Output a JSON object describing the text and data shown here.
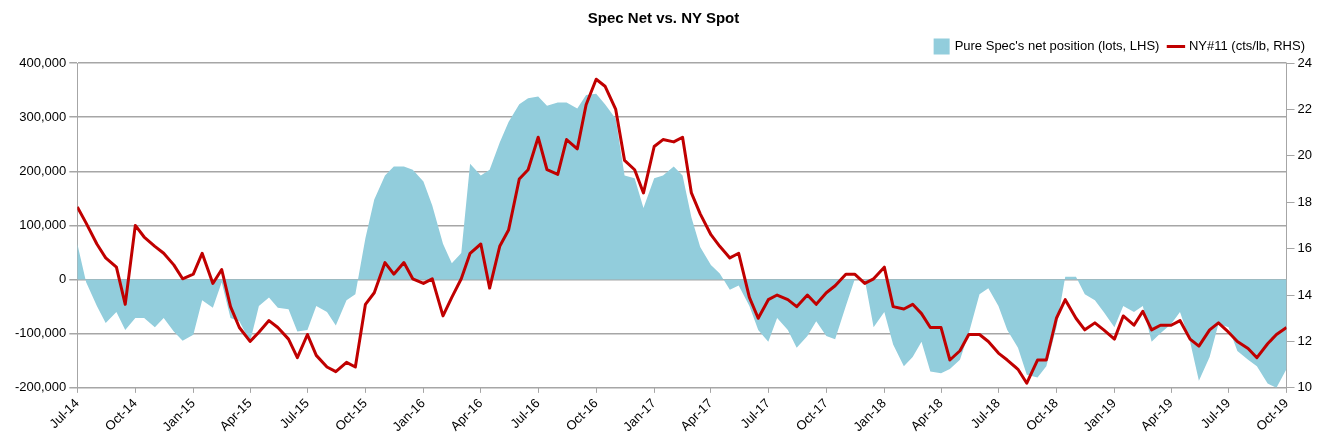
{
  "chart_data": {
    "type": "area",
    "title": "Spec Net vs. NY Spot",
    "x": [
      "2014-07-01",
      "2014-07-15",
      "2014-08-01",
      "2014-08-15",
      "2014-09-01",
      "2014-09-15",
      "2014-10-01",
      "2014-10-15",
      "2014-11-01",
      "2014-11-15",
      "2014-12-01",
      "2014-12-15",
      "2015-01-01",
      "2015-01-15",
      "2015-02-01",
      "2015-02-15",
      "2015-03-01",
      "2015-03-15",
      "2015-04-01",
      "2015-04-15",
      "2015-05-01",
      "2015-05-15",
      "2015-06-01",
      "2015-06-15",
      "2015-07-01",
      "2015-07-15",
      "2015-08-01",
      "2015-08-15",
      "2015-09-01",
      "2015-09-15",
      "2015-10-01",
      "2015-10-15",
      "2015-11-01",
      "2015-11-15",
      "2015-12-01",
      "2015-12-15",
      "2016-01-01",
      "2016-01-15",
      "2016-02-01",
      "2016-02-15",
      "2016-03-01",
      "2016-03-15",
      "2016-04-01",
      "2016-04-15",
      "2016-05-01",
      "2016-05-15",
      "2016-06-01",
      "2016-06-15",
      "2016-07-01",
      "2016-07-15",
      "2016-08-01",
      "2016-08-15",
      "2016-09-01",
      "2016-09-15",
      "2016-10-01",
      "2016-10-15",
      "2016-11-01",
      "2016-11-15",
      "2016-12-01",
      "2016-12-15",
      "2017-01-01",
      "2017-01-15",
      "2017-02-01",
      "2017-02-15",
      "2017-03-01",
      "2017-03-15",
      "2017-04-01",
      "2017-04-15",
      "2017-05-01",
      "2017-05-15",
      "2017-06-01",
      "2017-06-15",
      "2017-07-01",
      "2017-07-15",
      "2017-08-01",
      "2017-08-15",
      "2017-09-01",
      "2017-09-15",
      "2017-10-01",
      "2017-10-15",
      "2017-11-01",
      "2017-11-15",
      "2017-12-01",
      "2017-12-15",
      "2018-01-01",
      "2018-01-15",
      "2018-02-01",
      "2018-02-15",
      "2018-03-01",
      "2018-03-15",
      "2018-04-01",
      "2018-04-15",
      "2018-05-01",
      "2018-05-15",
      "2018-06-01",
      "2018-06-15",
      "2018-07-01",
      "2018-07-15",
      "2018-08-01",
      "2018-08-15",
      "2018-09-01",
      "2018-09-15",
      "2018-10-01",
      "2018-10-15",
      "2018-11-01",
      "2018-11-15",
      "2018-12-01",
      "2018-12-15",
      "2019-01-01",
      "2019-01-15",
      "2019-02-01",
      "2019-02-15",
      "2019-03-01",
      "2019-03-15",
      "2019-04-01",
      "2019-04-15",
      "2019-05-01",
      "2019-05-15",
      "2019-06-01",
      "2019-06-15",
      "2019-07-01",
      "2019-07-15",
      "2019-08-01",
      "2019-08-15",
      "2019-09-01",
      "2019-09-15",
      "2019-10-01"
    ],
    "series": [
      {
        "name": "Pure Spec's net position (lots, LHS)",
        "type": "area",
        "color": "#92cddc",
        "values": [
          66000,
          -5000,
          -49000,
          -80000,
          -60000,
          -93000,
          -71000,
          -71000,
          -88000,
          -71000,
          -96000,
          -113000,
          -102000,
          -38000,
          -52000,
          -5000,
          -71000,
          -77000,
          -115000,
          -49000,
          -33000,
          -52000,
          -55000,
          -96000,
          -93000,
          -49000,
          -60000,
          -85000,
          -38000,
          -27000,
          77000,
          148000,
          192000,
          209000,
          209000,
          203000,
          181000,
          137000,
          66000,
          30000,
          49000,
          214000,
          192000,
          203000,
          253000,
          291000,
          324000,
          335000,
          338000,
          321000,
          327000,
          327000,
          316000,
          341000,
          343000,
          324000,
          297000,
          192000,
          187000,
          132000,
          187000,
          192000,
          209000,
          192000,
          115000,
          60000,
          27000,
          11000,
          -19000,
          -11000,
          -49000,
          -93000,
          -115000,
          -71000,
          -93000,
          -126000,
          -104000,
          -77000,
          -104000,
          -110000,
          -49000,
          0,
          0,
          -88000,
          -60000,
          -120000,
          -160000,
          -143000,
          -115000,
          -170000,
          -173000,
          -165000,
          -148000,
          -99000,
          -27000,
          -16000,
          -49000,
          -93000,
          -126000,
          -176000,
          -181000,
          -160000,
          -88000,
          5000,
          5000,
          -27000,
          -38000,
          -60000,
          -88000,
          -49000,
          -60000,
          -49000,
          -115000,
          -99000,
          -82000,
          -60000,
          -115000,
          -187000,
          -143000,
          -82000,
          -88000,
          -132000,
          -148000,
          -160000,
          -192000,
          -200000,
          -165000
        ]
      },
      {
        "name": "NY#11 (cts/lb, RHS)",
        "type": "line",
        "axis": "y2",
        "color": "#c00000",
        "values": [
          17.8,
          17.1,
          16.2,
          15.6,
          15.2,
          13.6,
          17.0,
          16.5,
          16.1,
          15.8,
          15.3,
          14.7,
          14.9,
          15.8,
          14.5,
          15.1,
          13.5,
          12.6,
          12.0,
          12.4,
          12.9,
          12.6,
          12.1,
          11.3,
          12.3,
          11.4,
          10.9,
          10.7,
          11.1,
          10.9,
          13.6,
          14.1,
          15.4,
          14.9,
          15.4,
          14.7,
          14.5,
          14.7,
          13.1,
          13.9,
          14.7,
          15.8,
          16.2,
          14.3,
          16.1,
          16.8,
          19.0,
          19.4,
          20.8,
          19.4,
          19.2,
          20.7,
          20.3,
          22.2,
          23.3,
          23.0,
          22.0,
          19.8,
          19.4,
          18.4,
          20.4,
          20.7,
          20.6,
          20.8,
          18.4,
          17.5,
          16.6,
          16.1,
          15.6,
          15.8,
          13.9,
          13.0,
          13.8,
          14.0,
          13.8,
          13.5,
          14.0,
          13.6,
          14.1,
          14.4,
          14.9,
          14.9,
          14.5,
          14.7,
          15.2,
          13.5,
          13.4,
          13.6,
          13.2,
          12.6,
          12.6,
          11.2,
          11.6,
          12.3,
          12.3,
          12.0,
          11.5,
          11.2,
          10.8,
          10.2,
          11.2,
          11.2,
          13.0,
          13.8,
          13.0,
          12.5,
          12.8,
          12.5,
          12.1,
          13.1,
          12.7,
          13.3,
          12.5,
          12.7,
          12.7,
          12.9,
          12.1,
          11.8,
          12.5,
          12.8,
          12.4,
          12.0,
          11.7,
          11.3,
          11.9,
          12.3,
          12.6
        ]
      }
    ],
    "xlim": [
      "2014-07-01",
      "2019-10-01"
    ],
    "xticks": [
      {
        "value": "2014-07-01",
        "label": "Jul-14"
      },
      {
        "value": "2014-10-01",
        "label": "Oct-14"
      },
      {
        "value": "2015-01-01",
        "label": "Jan-15"
      },
      {
        "value": "2015-04-01",
        "label": "Apr-15"
      },
      {
        "value": "2015-07-01",
        "label": "Jul-15"
      },
      {
        "value": "2015-10-01",
        "label": "Oct-15"
      },
      {
        "value": "2016-01-01",
        "label": "Jan-16"
      },
      {
        "value": "2016-04-01",
        "label": "Apr-16"
      },
      {
        "value": "2016-07-01",
        "label": "Jul-16"
      },
      {
        "value": "2016-10-01",
        "label": "Oct-16"
      },
      {
        "value": "2017-01-01",
        "label": "Jan-17"
      },
      {
        "value": "2017-04-01",
        "label": "Apr-17"
      },
      {
        "value": "2017-07-01",
        "label": "Jul-17"
      },
      {
        "value": "2017-10-01",
        "label": "Oct-17"
      },
      {
        "value": "2018-01-01",
        "label": "Jan-18"
      },
      {
        "value": "2018-04-01",
        "label": "Apr-18"
      },
      {
        "value": "2018-07-01",
        "label": "Jul-18"
      },
      {
        "value": "2018-10-01",
        "label": "Oct-18"
      },
      {
        "value": "2019-01-01",
        "label": "Jan-19"
      },
      {
        "value": "2019-04-01",
        "label": "Apr-19"
      },
      {
        "value": "2019-07-01",
        "label": "Jul-19"
      },
      {
        "value": "2019-10-01",
        "label": "Oct-19"
      }
    ],
    "ylim": [
      -200000,
      400000
    ],
    "yticks": [
      {
        "value": -200000,
        "label": "-200,000"
      },
      {
        "value": -100000,
        "label": "-100,000"
      },
      0,
      {
        "value": 100000,
        "label": "100,000"
      },
      {
        "value": 200000,
        "label": "200,000"
      },
      {
        "value": 300000,
        "label": "300,000"
      },
      {
        "value": 400000,
        "label": "400,000"
      }
    ],
    "y2lim": [
      10,
      24
    ],
    "y2ticks": [
      10,
      12,
      14,
      16,
      18,
      20,
      22,
      24
    ],
    "grid": "y",
    "legend": "top right",
    "marker": "none",
    "line_style": "solid"
  }
}
